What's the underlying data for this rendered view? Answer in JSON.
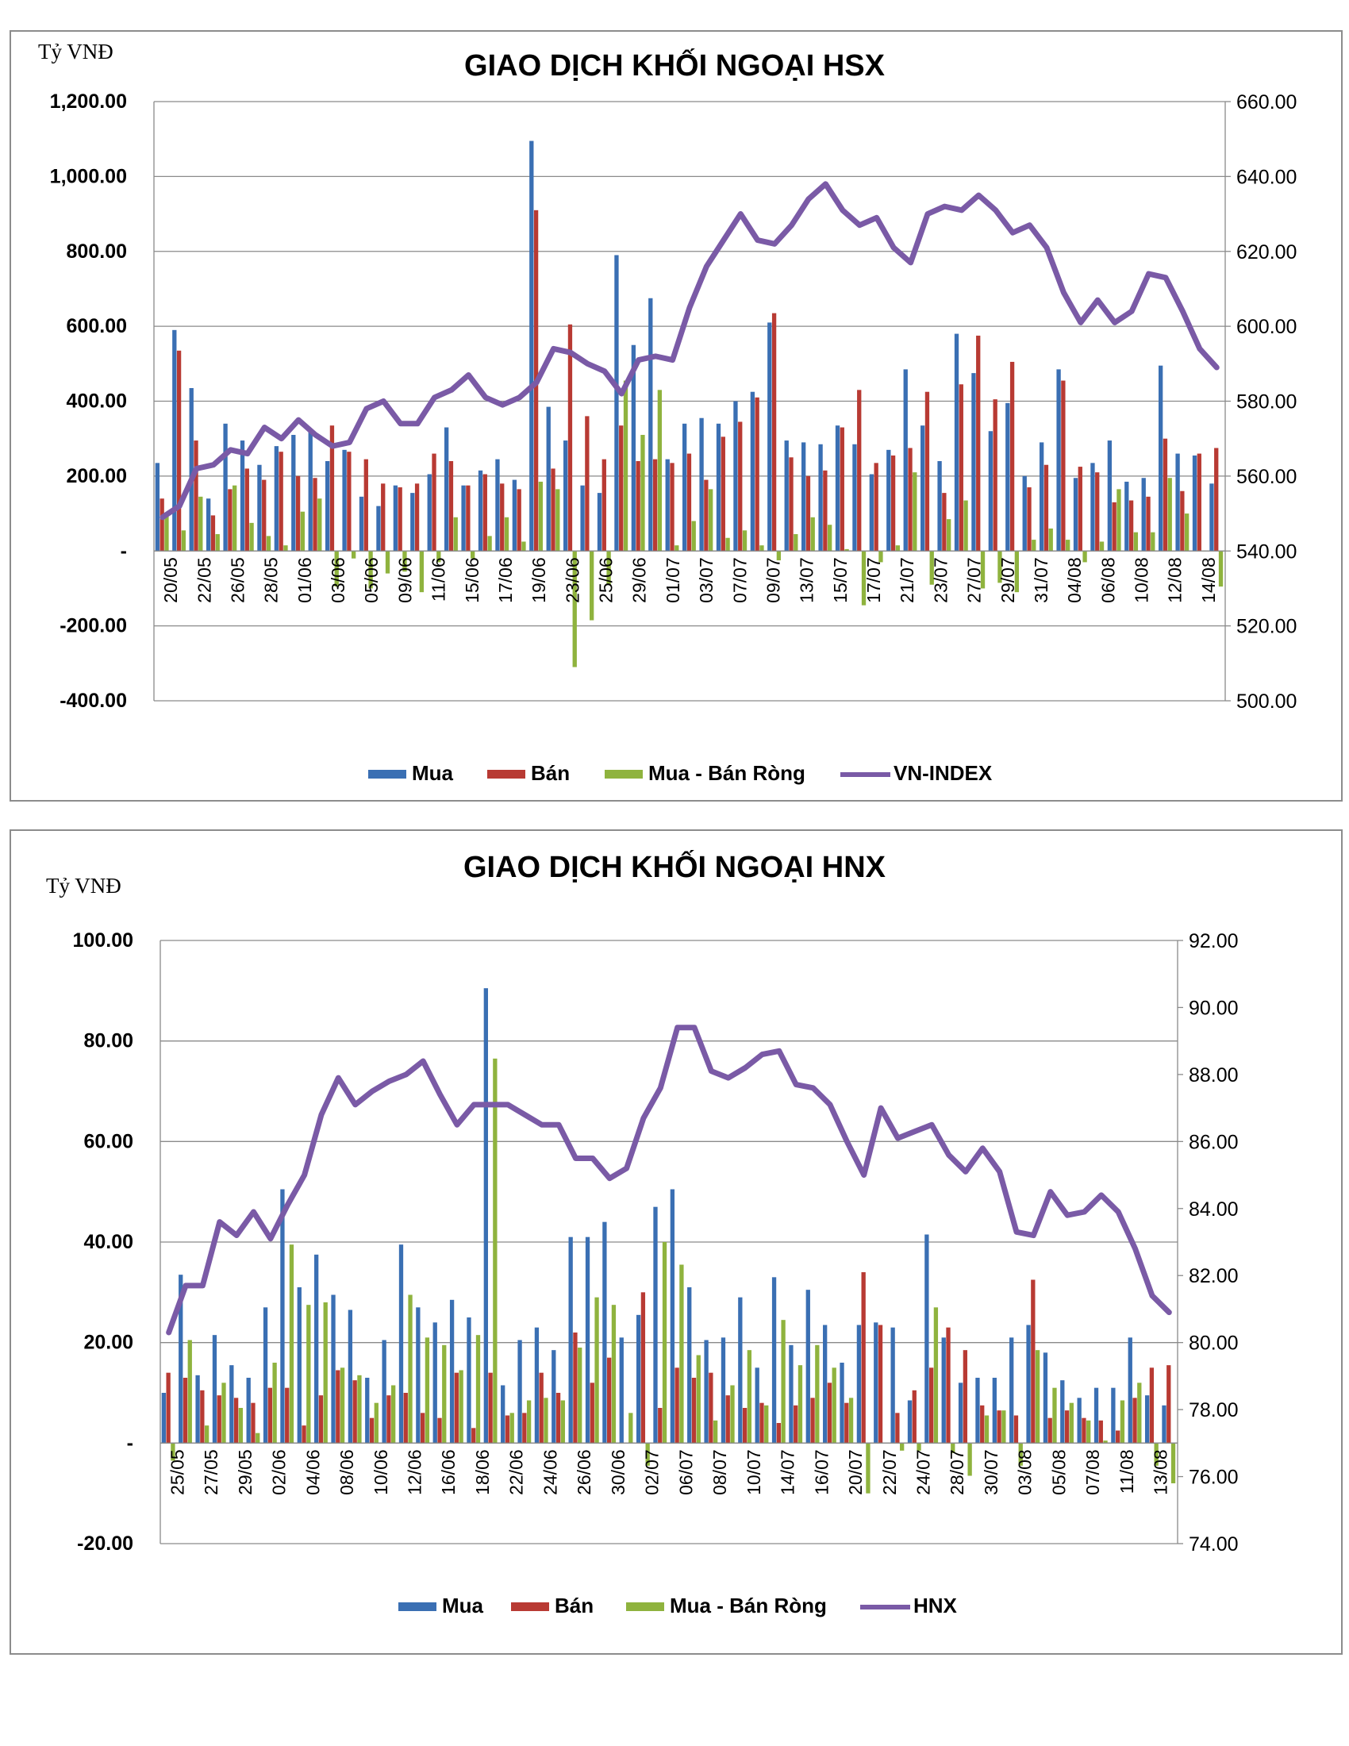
{
  "chart_data": [
    {
      "type": "bar",
      "title": "GIAO DỊCH KHỐI NGOẠI HSX",
      "unit_label": "Tỷ VNĐ",
      "y_ticks": [
        "1,200.00",
        "1,000.00",
        "800.00",
        "600.00",
        "400.00",
        "200.00",
        "-",
        "-200.00",
        "-400.00"
      ],
      "y_tick_values": [
        1200,
        1000,
        800,
        600,
        400,
        200,
        0,
        -200,
        -400
      ],
      "ylim": [
        -400,
        1200
      ],
      "y2_ticks": [
        "660.00",
        "640.00",
        "620.00",
        "600.00",
        "580.00",
        "560.00",
        "540.00",
        "520.00",
        "500.00"
      ],
      "y2lim": [
        500,
        660
      ],
      "x_tick_labels": [
        "20/05",
        "22/05",
        "26/05",
        "28/05",
        "01/06",
        "03/06",
        "05/06",
        "09/06",
        "11/06",
        "15/06",
        "17/06",
        "19/06",
        "23/06",
        "25/06",
        "29/06",
        "01/07",
        "03/07",
        "07/07",
        "09/07",
        "13/07",
        "15/07",
        "17/07",
        "21/07",
        "23/07",
        "27/07",
        "29/07",
        "31/07",
        "04/08",
        "06/08",
        "10/08",
        "12/08",
        "14/08"
      ],
      "legend": [
        "Mua",
        "Bán",
        "Mua - Bán Ròng",
        "VN-INDEX"
      ],
      "colors": {
        "mua": "#3a6fb3",
        "ban": "#b83a33",
        "rong": "#8fb33e",
        "index": "#7a5aa6"
      },
      "series": [
        {
          "name": "Mua",
          "values": [
            235,
            590,
            435,
            140,
            340,
            295,
            230,
            280,
            310,
            320,
            240,
            270,
            145,
            120,
            175,
            155,
            205,
            330,
            175,
            215,
            245,
            190,
            1095,
            385,
            295,
            175,
            155,
            790,
            550,
            675,
            245,
            340,
            355,
            340,
            400,
            425,
            610,
            295,
            290,
            285,
            335,
            285,
            205,
            270,
            485,
            335,
            240,
            580,
            475,
            320,
            395,
            200,
            290,
            485,
            195,
            235,
            295,
            185,
            195,
            495,
            260,
            255,
            180
          ]
        },
        {
          "name": "Bán",
          "values": [
            140,
            535,
            295,
            95,
            165,
            220,
            190,
            265,
            200,
            195,
            335,
            265,
            245,
            180,
            170,
            180,
            260,
            240,
            175,
            205,
            180,
            165,
            910,
            220,
            605,
            360,
            245,
            335,
            240,
            245,
            235,
            260,
            190,
            305,
            345,
            410,
            635,
            250,
            200,
            215,
            330,
            430,
            235,
            255,
            275,
            425,
            155,
            445,
            575,
            405,
            505,
            170,
            230,
            455,
            225,
            210,
            130,
            135,
            145,
            300,
            160,
            260,
            275
          ]
        },
        {
          "name": "Mua - Bán Ròng",
          "values": [
            95,
            55,
            145,
            45,
            175,
            75,
            40,
            15,
            105,
            140,
            -95,
            -20,
            -100,
            -60,
            -55,
            -110,
            -30,
            90,
            -20,
            40,
            90,
            25,
            185,
            165,
            -310,
            -185,
            -90,
            455,
            310,
            430,
            15,
            80,
            165,
            35,
            55,
            15,
            -25,
            45,
            90,
            70,
            5,
            -145,
            -30,
            15,
            210,
            -90,
            85,
            135,
            -100,
            -85,
            -110,
            30,
            60,
            30,
            -30,
            25,
            165,
            50,
            50,
            195,
            100,
            0,
            -95
          ]
        },
        {
          "name": "VN-INDEX",
          "values": [
            549,
            552,
            562,
            563,
            567,
            566,
            573,
            570,
            575,
            571,
            568,
            569,
            578,
            580,
            574,
            574,
            581,
            583,
            587,
            581,
            579,
            581,
            585,
            594,
            593,
            590,
            588,
            582,
            591,
            592,
            591,
            605,
            616,
            623,
            630,
            623,
            622,
            627,
            634,
            638,
            631,
            627,
            629,
            621,
            617,
            630,
            632,
            631,
            635,
            631,
            625,
            627,
            621,
            609,
            601,
            607,
            601,
            604,
            614,
            613,
            604,
            594,
            589
          ]
        }
      ]
    },
    {
      "type": "bar",
      "title": "GIAO DỊCH KHỐI NGOẠI HNX",
      "unit_label": "Tỷ VNĐ",
      "y_ticks": [
        "100.00",
        "80.00",
        "60.00",
        "40.00",
        "20.00",
        "-",
        "-20.00"
      ],
      "y_tick_values": [
        100,
        80,
        60,
        40,
        20,
        0,
        -20
      ],
      "ylim": [
        -20,
        100
      ],
      "y2_ticks": [
        "92.00",
        "90.00",
        "88.00",
        "86.00",
        "84.00",
        "82.00",
        "80.00",
        "78.00",
        "76.00",
        "74.00"
      ],
      "y2lim": [
        74,
        92
      ],
      "x_tick_labels": [
        "25/05",
        "27/05",
        "29/05",
        "02/06",
        "04/06",
        "08/06",
        "10/06",
        "12/06",
        "16/06",
        "18/06",
        "22/06",
        "24/06",
        "26/06",
        "30/06",
        "02/07",
        "06/07",
        "08/07",
        "10/07",
        "14/07",
        "16/07",
        "20/07",
        "22/07",
        "24/07",
        "28/07",
        "30/07",
        "03/08",
        "05/08",
        "07/08",
        "11/08",
        "13/08"
      ],
      "legend": [
        "Mua",
        "Bán",
        "Mua - Bán Ròng",
        "HNX"
      ],
      "colors": {
        "mua": "#3a6fb3",
        "ban": "#b83a33",
        "rong": "#8fb33e",
        "index": "#7a5aa6"
      },
      "series": [
        {
          "name": "Mua",
          "values": [
            10,
            33.5,
            13.5,
            21.5,
            15.5,
            13,
            27,
            50.5,
            31,
            37.5,
            29.5,
            26.5,
            13,
            20.5,
            39.5,
            27,
            24,
            28.5,
            25,
            90.5,
            11.5,
            20.5,
            23,
            18.5,
            41,
            41,
            44,
            21,
            25.5,
            47,
            50.5,
            31,
            20.5,
            21,
            29,
            15,
            33,
            19.5,
            30.5,
            23.5,
            16,
            23.5,
            24,
            23,
            8.5,
            41.5,
            21,
            12,
            13,
            13,
            21,
            23.5,
            18,
            12.5,
            9,
            11,
            11,
            21,
            9.5,
            7.5
          ]
        },
        {
          "name": "Bán",
          "values": [
            14,
            13,
            10.5,
            9.5,
            9,
            8,
            11,
            11,
            3.5,
            9.5,
            14.5,
            12.5,
            5,
            9.5,
            10,
            6,
            5,
            14,
            3,
            14,
            5.5,
            6,
            14,
            10,
            22,
            12,
            17,
            0,
            30,
            7,
            15,
            13,
            14,
            9.5,
            7,
            8,
            4,
            7.5,
            9,
            12,
            8,
            34,
            23.5,
            6,
            10.5,
            15,
            23,
            18.5,
            7.5,
            6.5,
            5.5,
            32.5,
            5,
            6.5,
            5,
            4.5,
            2.5,
            9,
            15,
            15.5
          ]
        },
        {
          "name": "Mua - Bán Ròng",
          "values": [
            -3.5,
            20.5,
            3.5,
            12,
            7,
            2,
            16,
            39.5,
            27.5,
            28,
            15,
            13.5,
            8,
            11.5,
            29.5,
            21,
            19.5,
            14.5,
            21.5,
            76.5,
            6,
            8.5,
            9,
            8.5,
            19,
            29,
            27.5,
            6,
            -4.5,
            40,
            35.5,
            17.5,
            4.5,
            11.5,
            18.5,
            7.5,
            24.5,
            15.5,
            19.5,
            15,
            9,
            -10,
            0,
            -1.5,
            -1.5,
            27,
            -2,
            -6.5,
            5.5,
            6.5,
            -4.5,
            18.5,
            11,
            8,
            4.5,
            0.5,
            8.5,
            12,
            -4.5,
            -8
          ]
        },
        {
          "name": "HNX",
          "values": [
            80.3,
            81.7,
            81.7,
            83.6,
            83.2,
            83.9,
            83.1,
            84.1,
            85.0,
            86.8,
            87.9,
            87.1,
            87.5,
            87.8,
            88.0,
            88.4,
            87.4,
            86.5,
            87.1,
            87.1,
            87.1,
            86.8,
            86.5,
            86.5,
            85.5,
            85.5,
            84.9,
            85.2,
            86.7,
            87.6,
            89.4,
            89.4,
            88.1,
            87.9,
            88.2,
            88.6,
            88.7,
            87.7,
            87.6,
            87.1,
            86.0,
            85.0,
            87.0,
            86.1,
            86.3,
            86.5,
            85.6,
            85.1,
            85.8,
            85.1,
            83.3,
            83.2,
            84.5,
            83.8,
            83.9,
            84.4,
            83.9,
            82.8,
            81.4,
            80.9
          ]
        }
      ]
    }
  ]
}
